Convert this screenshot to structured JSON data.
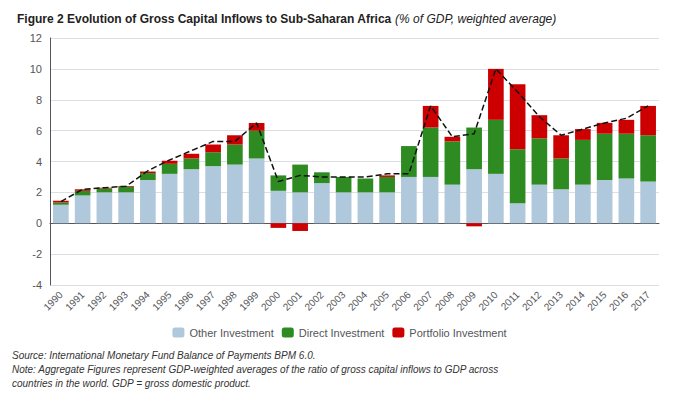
{
  "chart_data": {
    "type": "bar",
    "title": "Figure 2 Evolution of Gross Capital Inflows to Sub-Saharan Africa ",
    "subtitle": "(% of GDP, weighted average)",
    "annotations": [
      "Source: International Monetary Fund Balance of Payments BPM 6.0.",
      "Note: Aggregate Figures represent GDP-weighted averages of the ratio of gross capital inflows to GDP across",
      "countries in the world. GDP = gross domestic product."
    ],
    "categories": [
      "1990",
      "1991",
      "1992",
      "1993",
      "1994",
      "1995",
      "1996",
      "1997",
      "1998",
      "1999",
      "2000",
      "2001",
      "2002",
      "2003",
      "2004",
      "2005",
      "2006",
      "2007",
      "2008",
      "2009",
      "2010",
      "2011",
      "2012",
      "2013",
      "2014",
      "2015",
      "2016",
      "2017"
    ],
    "series": [
      {
        "name": "Other Investment",
        "color": "#B0C8DC",
        "values": [
          1.2,
          1.8,
          2.0,
          2.0,
          2.8,
          3.2,
          3.5,
          3.7,
          3.8,
          4.2,
          2.1,
          2.0,
          2.6,
          2.0,
          2.0,
          2.0,
          3.0,
          3.0,
          2.5,
          3.5,
          3.2,
          1.3,
          2.5,
          2.2,
          2.5,
          2.8,
          2.9,
          2.7
        ]
      },
      {
        "name": "Direct Investment",
        "color": "#2E8B22",
        "values": [
          0.15,
          0.3,
          0.25,
          0.35,
          0.45,
          0.65,
          0.7,
          0.9,
          1.3,
          1.8,
          1.0,
          1.8,
          0.7,
          1.0,
          0.9,
          1.0,
          2.0,
          3.2,
          2.8,
          2.7,
          3.5,
          3.5,
          3.0,
          2.0,
          2.9,
          3.0,
          2.9,
          3.0
        ]
      },
      {
        "name": "Portfolio Investment",
        "color": "#CC0000",
        "values": [
          0.1,
          0.1,
          0.05,
          0.05,
          0.1,
          0.2,
          0.3,
          0.5,
          0.6,
          0.5,
          -0.3,
          -0.5,
          0.0,
          0.0,
          0.0,
          0.1,
          0.0,
          1.4,
          0.3,
          -0.2,
          3.3,
          4.2,
          1.5,
          1.5,
          0.7,
          0.7,
          0.9,
          1.9
        ]
      },
      {
        "type": "line",
        "color": "#111111",
        "line_style": "dashed",
        "values": [
          1.4,
          2.2,
          2.3,
          2.4,
          3.4,
          4.1,
          4.7,
          5.3,
          5.3,
          6.5,
          2.7,
          3.1,
          3.0,
          3.0,
          3.0,
          3.2,
          3.2,
          7.6,
          5.6,
          5.8,
          10.0,
          8.5,
          6.9,
          5.7,
          6.1,
          6.5,
          6.8,
          7.6
        ]
      }
    ],
    "stacked": true,
    "ylim": [
      -4,
      12
    ],
    "yticks": [
      -4,
      -2,
      0,
      2,
      4,
      6,
      8,
      10,
      12
    ],
    "grid": true,
    "legend": "bottom"
  }
}
